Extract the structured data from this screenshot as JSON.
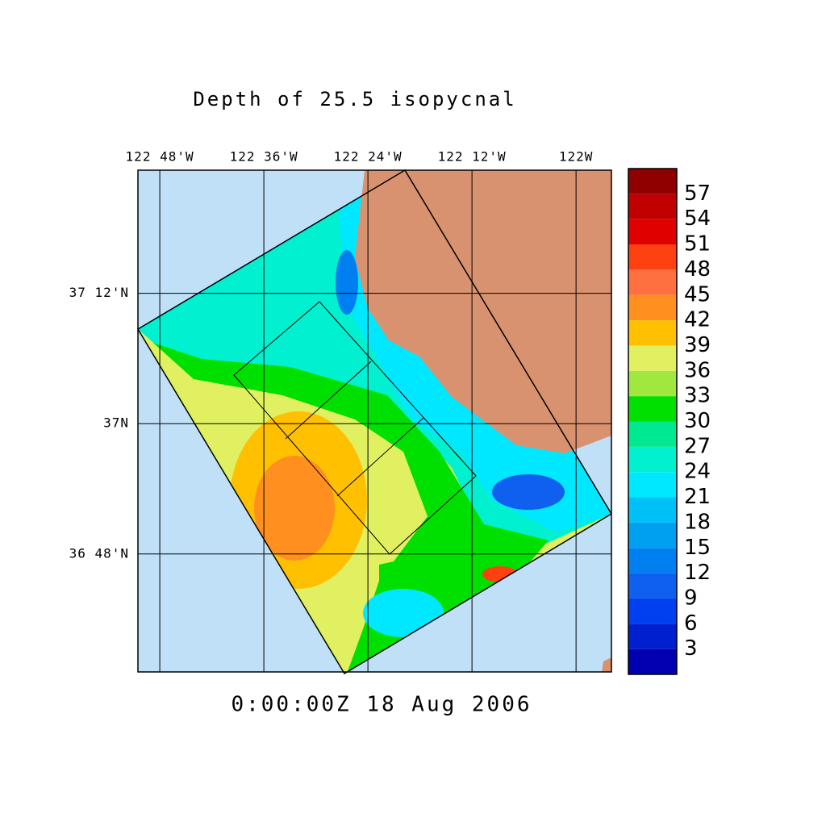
{
  "title": "Depth of 25.5 isopycnal",
  "timestamp": "0:00:00Z  18 Aug 2006",
  "map": {
    "xlim": [
      -122.842,
      -121.932
    ],
    "ylim": [
      36.619,
      37.389
    ],
    "xticks": [
      {
        "value": -122.8,
        "label": "122 48'W"
      },
      {
        "value": -122.6,
        "label": "122 36'W"
      },
      {
        "value": -122.4,
        "label": "122 24'W"
      },
      {
        "value": -122.2,
        "label": "122 12'W"
      },
      {
        "value": -122,
        "label": "122W"
      }
    ],
    "yticks": [
      {
        "value": 37.2,
        "label": "37 12'N"
      },
      {
        "value": 37,
        "label": "37N"
      },
      {
        "value": 36.8,
        "label": "36 48'N"
      }
    ],
    "grid": true
  },
  "colorbar": {
    "range": [
      0,
      60
    ],
    "levels": [
      3,
      6,
      9,
      12,
      15,
      18,
      21,
      24,
      27,
      30,
      33,
      36,
      39,
      42,
      45,
      48,
      51,
      54,
      57
    ],
    "colors": [
      "#0000b0",
      "#0020d0",
      "#0040f0",
      "#1060f0",
      "#0080f0",
      "#00a0f0",
      "#00c0f8",
      "#00e8ff",
      "#00f0d0",
      "#00e890",
      "#00e000",
      "#a0e840",
      "#e0f060",
      "#ffc000",
      "#ff9020",
      "#ff7040",
      "#ff4010",
      "#e00000",
      "#c00000",
      "#900000"
    ]
  }
}
